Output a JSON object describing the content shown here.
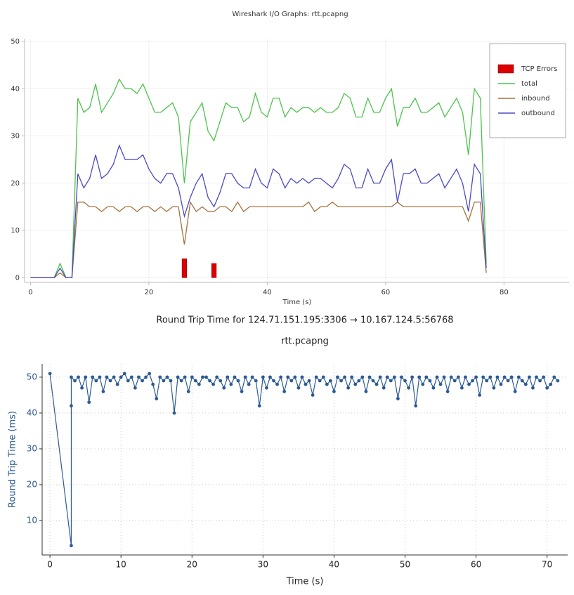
{
  "chart_data": [
    {
      "type": "line",
      "title": "Wireshark I/O Graphs: rtt.pcapng",
      "xlabel": "Time (s)",
      "x": [
        0,
        1,
        2,
        3,
        4,
        5,
        6,
        7,
        8,
        9,
        10,
        11,
        12,
        13,
        14,
        15,
        16,
        17,
        18,
        19,
        20,
        21,
        22,
        23,
        24,
        25,
        26,
        27,
        28,
        29,
        30,
        31,
        32,
        33,
        34,
        35,
        36,
        37,
        38,
        39,
        40,
        41,
        42,
        43,
        44,
        45,
        46,
        47,
        48,
        49,
        50,
        51,
        52,
        53,
        54,
        55,
        56,
        57,
        58,
        59,
        60,
        61,
        62,
        63,
        64,
        65,
        66,
        67,
        68,
        69,
        70,
        71,
        72,
        73,
        74,
        75,
        76,
        77
      ],
      "xlim": [
        -1,
        91
      ],
      "xticks": [
        0,
        20,
        40,
        60,
        80
      ],
      "ylim": [
        -1,
        50.6
      ],
      "yticks": [
        0,
        10,
        20,
        30,
        40,
        50
      ],
      "grid": true,
      "legend": "upper right",
      "series": [
        {
          "name": "TCP Errors",
          "type": "bar",
          "color": "#dd0000",
          "x": [
            26,
            31
          ],
          "values": [
            4,
            3
          ]
        },
        {
          "name": "total",
          "color": "#4cc34c",
          "values": [
            0,
            0,
            0,
            0,
            0,
            3,
            0,
            0,
            38,
            35,
            36,
            41,
            35,
            37,
            39,
            42,
            40,
            40,
            39,
            41,
            38,
            35,
            35,
            36,
            37,
            34,
            20,
            33,
            35,
            37,
            31,
            29,
            33,
            37,
            36,
            36,
            33,
            34,
            39,
            35,
            34,
            38,
            38,
            34,
            36,
            35,
            36,
            36,
            35,
            36,
            35,
            35,
            36,
            39,
            38,
            34,
            34,
            38,
            35,
            35,
            38,
            40,
            32,
            36,
            36,
            38,
            35,
            35,
            36,
            37,
            34,
            36,
            38,
            35,
            26,
            40,
            38,
            3
          ]
        },
        {
          "name": "inbound",
          "color": "#a6703c",
          "values": [
            0,
            0,
            0,
            0,
            0,
            1,
            0,
            0,
            16,
            16,
            15,
            15,
            14,
            15,
            15,
            14,
            15,
            15,
            14,
            15,
            15,
            14,
            15,
            14,
            15,
            15,
            7,
            16,
            14,
            15,
            14,
            14,
            15,
            15,
            14,
            16,
            14,
            15,
            15,
            15,
            15,
            15,
            15,
            15,
            15,
            15,
            15,
            16,
            14,
            15,
            15,
            16,
            15,
            15,
            15,
            15,
            15,
            15,
            15,
            15,
            15,
            15,
            16,
            15,
            15,
            15,
            15,
            15,
            15,
            15,
            15,
            15,
            15,
            15,
            12,
            16,
            16,
            1
          ]
        },
        {
          "name": "outbound",
          "color": "#4a4ac4",
          "values": [
            0,
            0,
            0,
            0,
            0,
            2,
            0,
            0,
            22,
            19,
            21,
            26,
            21,
            22,
            24,
            28,
            25,
            25,
            25,
            26,
            23,
            21,
            20,
            22,
            22,
            19,
            13,
            17,
            20,
            22,
            17,
            15,
            18,
            22,
            22,
            20,
            19,
            19,
            23,
            20,
            19,
            23,
            22,
            19,
            21,
            20,
            21,
            20,
            21,
            21,
            20,
            19,
            21,
            24,
            23,
            19,
            19,
            23,
            20,
            20,
            23,
            25,
            16,
            22,
            22,
            23,
            20,
            20,
            21,
            22,
            19,
            21,
            23,
            20,
            14,
            24,
            22,
            2
          ]
        }
      ]
    },
    {
      "type": "line",
      "title": "Round Trip Time for 124.71.151.195:3306 → 10.167.124.5:56768",
      "subtitle": "rtt.pcapng",
      "xlabel": "Time (s)",
      "ylabel": "Round Trip Time (ms)",
      "markers": true,
      "x": [
        0,
        3,
        3,
        3,
        3.5,
        4,
        4.5,
        5,
        5.5,
        6,
        6.5,
        7,
        7.5,
        8,
        8.5,
        9,
        9.5,
        10,
        10.5,
        11,
        11.5,
        12,
        12.5,
        13,
        13.5,
        14,
        14.5,
        15,
        15.5,
        16,
        16.5,
        17,
        17.5,
        18,
        18.5,
        19,
        19.5,
        20,
        20.5,
        21,
        21.5,
        22,
        22.5,
        23,
        23.5,
        24,
        24.5,
        25,
        25.5,
        26,
        26.5,
        27,
        27.5,
        28,
        28.5,
        29,
        29.5,
        30,
        30.5,
        31,
        31.5,
        32,
        32.5,
        33,
        33.5,
        34,
        34.5,
        35,
        35.5,
        36,
        36.5,
        37,
        37.5,
        38,
        38.5,
        39,
        39.5,
        40,
        40.5,
        41,
        41.5,
        42,
        42.5,
        43,
        43.5,
        44,
        44.5,
        45,
        45.5,
        46,
        46.5,
        47,
        47.5,
        48,
        48.5,
        49,
        49.5,
        50,
        50.5,
        51,
        51.5,
        52,
        52.5,
        53,
        53.5,
        54,
        54.5,
        55,
        55.5,
        56,
        56.5,
        57,
        57.5,
        58,
        58.5,
        59,
        59.5,
        60,
        60.5,
        61,
        61.5,
        62,
        62.5,
        63,
        63.5,
        64,
        64.5,
        65,
        65.5,
        66,
        66.5,
        67,
        67.5,
        68,
        68.5,
        69,
        69.5,
        70,
        70.5,
        71,
        71.5
      ],
      "xlim": [
        -1.1,
        72.9
      ],
      "xticks": [
        0,
        10,
        20,
        30,
        40,
        50,
        60,
        70
      ],
      "ylim": [
        0.4,
        53.7
      ],
      "yticks": [
        10,
        20,
        30,
        40,
        50
      ],
      "grid": true,
      "series": [
        {
          "color": "#2c5a92",
          "values": [
            51,
            3,
            42,
            50,
            49,
            50,
            47,
            50,
            43,
            50,
            49,
            50,
            46,
            50,
            49,
            50,
            48,
            50,
            51,
            49,
            50,
            47,
            50,
            49,
            50,
            51,
            48,
            44,
            50,
            49,
            50,
            49,
            40,
            50,
            49,
            50,
            46,
            50,
            49,
            48,
            50,
            50,
            49,
            48,
            50,
            49,
            47,
            50,
            48,
            50,
            49,
            46,
            50,
            48,
            50,
            49,
            42,
            50,
            47,
            50,
            49,
            48,
            50,
            46,
            50,
            49,
            50,
            47,
            50,
            48,
            49,
            45,
            50,
            49,
            50,
            48,
            49,
            46,
            50,
            49,
            50,
            47,
            50,
            48,
            49,
            50,
            46,
            50,
            49,
            48,
            50,
            47,
            50,
            49,
            50,
            44,
            50,
            49,
            47,
            50,
            42,
            50,
            48,
            50,
            49,
            47,
            50,
            48,
            50,
            46,
            50,
            49,
            50,
            47,
            50,
            48,
            49,
            50,
            45,
            50,
            49,
            50,
            47,
            50,
            48,
            50,
            49,
            50,
            46,
            50,
            49,
            48,
            50,
            47,
            50,
            49,
            50,
            47,
            48,
            50,
            49
          ]
        }
      ]
    }
  ]
}
